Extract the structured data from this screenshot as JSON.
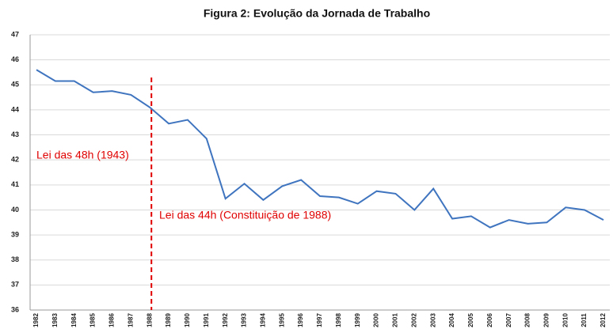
{
  "chart_data": {
    "type": "line",
    "title": "Figura 2: Evolução da Jornada de Trabalho",
    "categories": [
      "1982",
      "1983",
      "1984",
      "1985",
      "1986",
      "1987",
      "1988",
      "1989",
      "1990",
      "1991",
      "1992",
      "1993",
      "1994",
      "1995",
      "1996",
      "1997",
      "1998",
      "1999",
      "2000",
      "2001",
      "2002",
      "2003",
      "2004",
      "2005",
      "2006",
      "2007",
      "2008",
      "2009",
      "2010",
      "2011",
      "2012"
    ],
    "series": [
      {
        "color": "#3f74bf",
        "values": [
          45.6,
          45.15,
          45.15,
          44.7,
          44.75,
          44.6,
          44.1,
          43.45,
          43.6,
          42.85,
          40.45,
          41.05,
          40.4,
          40.95,
          41.2,
          40.55,
          40.5,
          40.25,
          40.75,
          40.65,
          40.0,
          40.85,
          39.65,
          39.75,
          39.3,
          39.6,
          39.45,
          39.5,
          40.1,
          40.0,
          39.6
        ]
      }
    ],
    "ylim": [
      36,
      47
    ],
    "yticks": [
      36,
      37,
      38,
      39,
      40,
      41,
      42,
      43,
      44,
      45,
      46,
      47
    ],
    "grid": true,
    "vline": "1988",
    "annotation_color": "#e00000",
    "annotations": [
      "Lei das 48h (1943)",
      "Lei das 44h (Constituição de 1988)"
    ]
  }
}
